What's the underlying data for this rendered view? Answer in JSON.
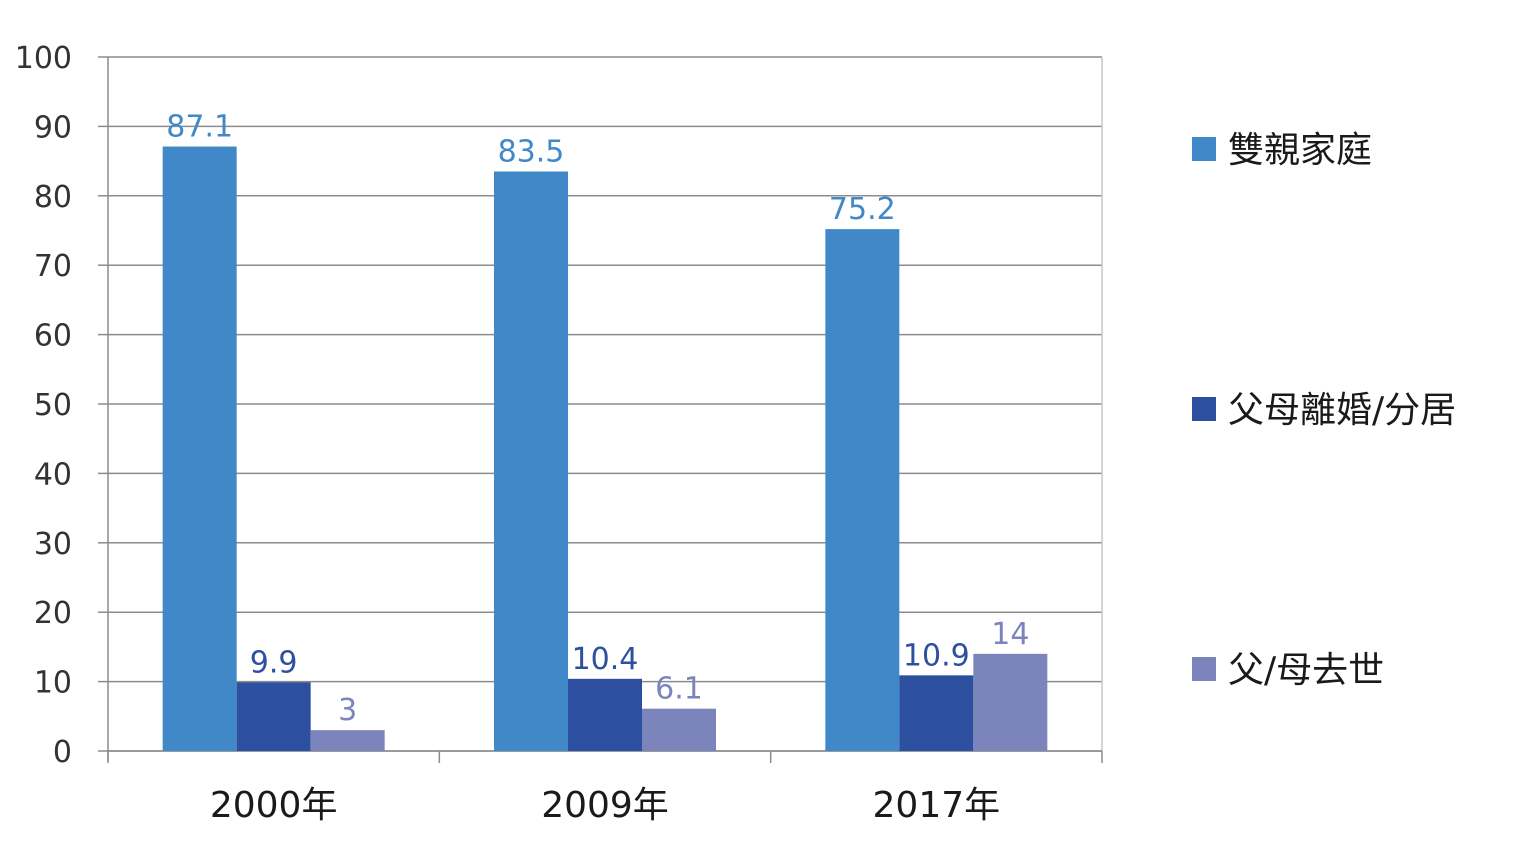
{
  "chart_data": {
    "type": "bar",
    "categories": [
      "2000年",
      "2009年",
      "2017年"
    ],
    "series": [
      {
        "name": "雙親家庭",
        "values": [
          87.1,
          83.5,
          75.2
        ],
        "color": "#4188c8"
      },
      {
        "name": "父母離婚/分居",
        "values": [
          9.9,
          10.4,
          10.9
        ],
        "color": "#2d4fa0"
      },
      {
        "name": "父/母去世",
        "values": [
          3,
          6.1,
          14
        ],
        "color": "#7b85bb"
      }
    ],
    "data_labels": [
      [
        "87.1",
        "83.5",
        "75.2"
      ],
      [
        "9.9",
        "10.4",
        "10.9"
      ],
      [
        "3",
        "6.1",
        "14"
      ]
    ],
    "yticks": [
      "0",
      "10",
      "20",
      "30",
      "40",
      "50",
      "60",
      "70",
      "80",
      "90",
      "100"
    ],
    "ylim": [
      0,
      100
    ],
    "grid": true,
    "legend_position": "right",
    "title": "",
    "xlabel": "",
    "ylabel": ""
  }
}
